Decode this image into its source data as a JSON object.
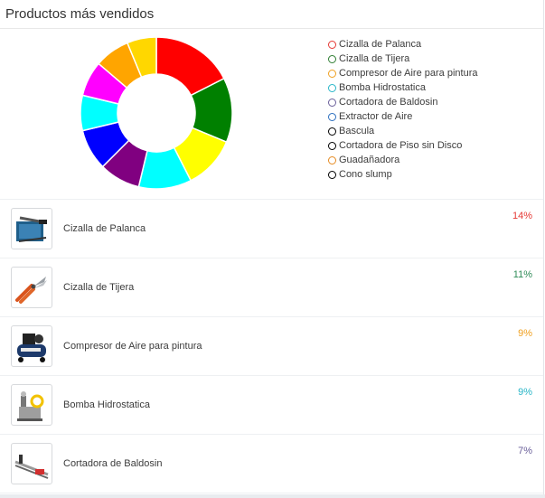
{
  "title": "Productos más vendidos",
  "chart_data": {
    "type": "pie",
    "variant": "doughnut",
    "categories": [
      "Cizalla de Palanca",
      "Cizalla de Tijera",
      "Compresor de Aire para pintura",
      "Bomba Hidrostatica",
      "Cortadora de Baldosin",
      "Extractor de Aire",
      "Bascula",
      "Cortadora de Piso sin Disco",
      "Guadañadora",
      "Cono slump"
    ],
    "values": [
      14,
      11,
      9,
      9,
      7,
      7,
      6,
      6,
      6,
      5
    ],
    "segment_colors": [
      "#ff0000",
      "#008000",
      "#ffff00",
      "#00ffff",
      "#800080",
      "#0000ff",
      "#00ffff",
      "#ff00ff",
      "#ffa500",
      "#ffd700"
    ],
    "legend_colors": [
      "#e53935",
      "#2e7d32",
      "#f0a020",
      "#29b6c8",
      "#6a5f9a",
      "#2c6fbf",
      "#000000",
      "#000000",
      "#e58a20",
      "#000000"
    ],
    "legend_position": "right"
  },
  "products": [
    {
      "name": "Cizalla de Palanca",
      "percent": "14%",
      "color": "#e53935",
      "icon": "lever-shear-icon"
    },
    {
      "name": "Cizalla de Tijera",
      "percent": "11%",
      "color": "#2e8b57",
      "icon": "scissor-shear-icon"
    },
    {
      "name": "Compresor de Aire para pintura",
      "percent": "9%",
      "color": "#f0a020",
      "icon": "air-compressor-icon"
    },
    {
      "name": "Bomba Hidrostatica",
      "percent": "9%",
      "color": "#29b6c8",
      "icon": "hydrostatic-pump-icon"
    },
    {
      "name": "Cortadora de Baldosin",
      "percent": "7%",
      "color": "#6a5f9a",
      "icon": "tile-cutter-icon"
    }
  ]
}
